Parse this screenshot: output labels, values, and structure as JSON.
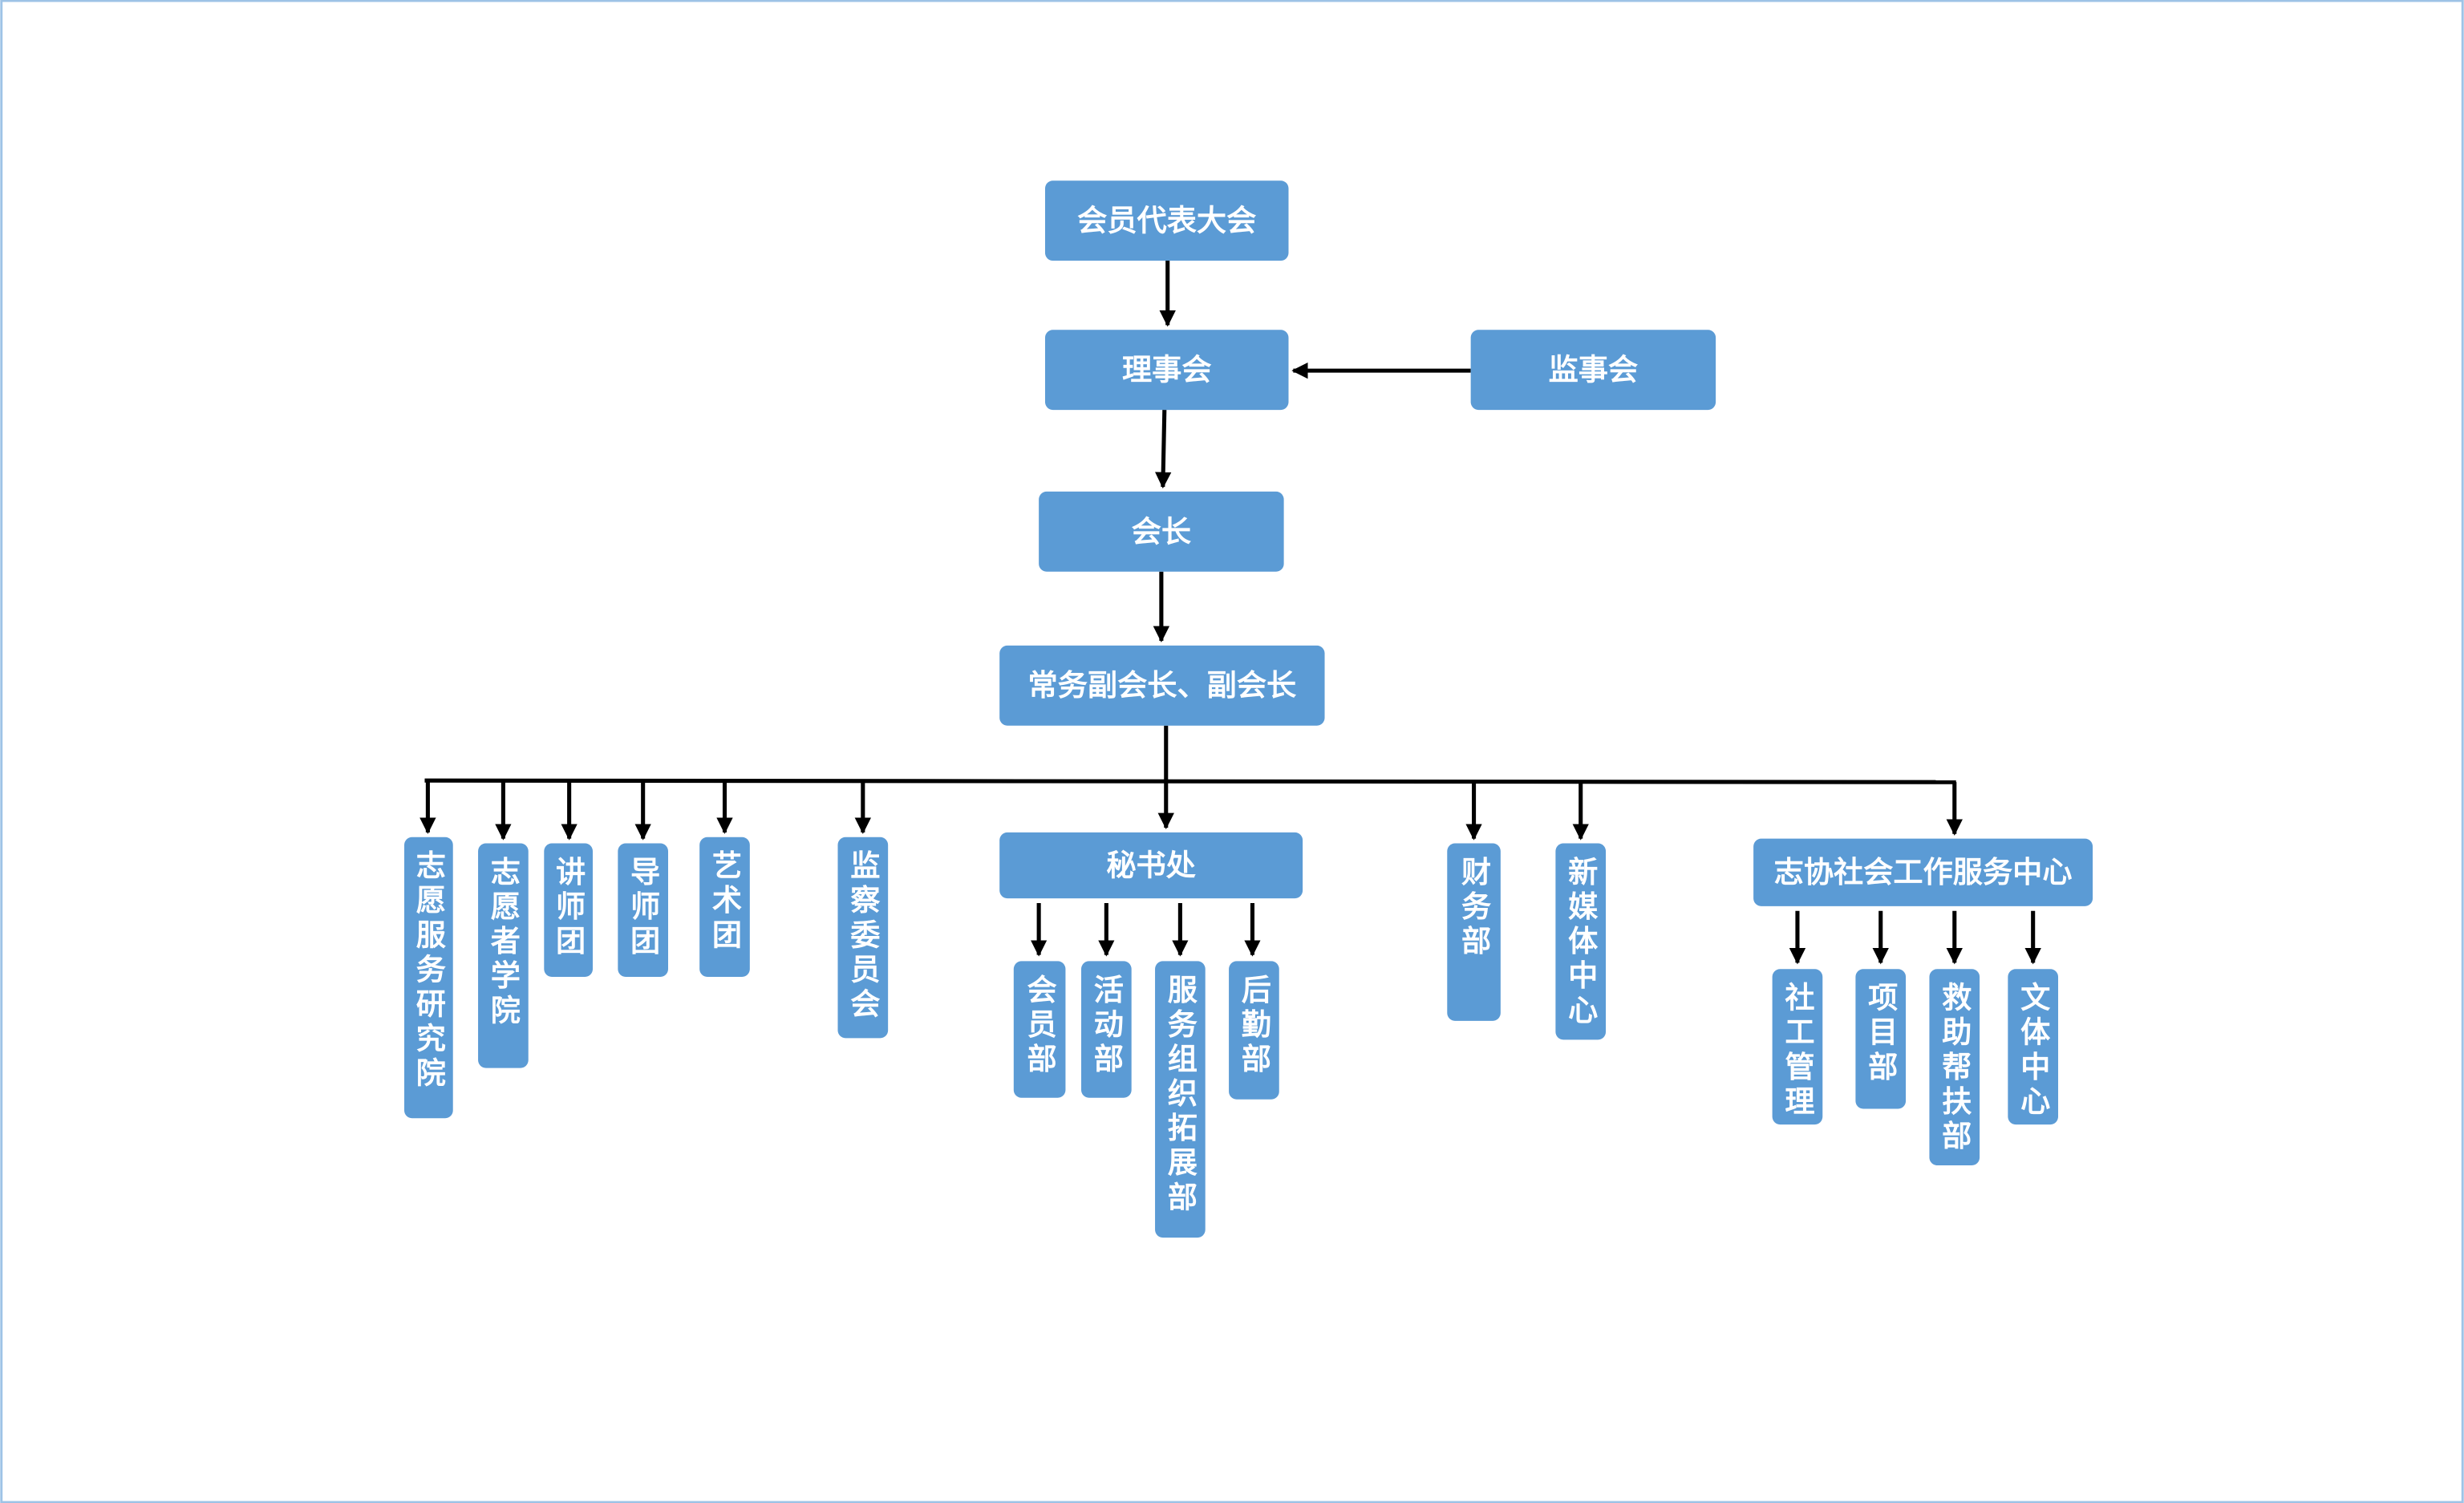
{
  "nodes": [
    {
      "label": "会员代表大会"
    },
    {
      "label": "理事会"
    },
    {
      "label": "监事会"
    },
    {
      "label": "会长"
    },
    {
      "label": "常务副会长、副会长"
    },
    {
      "label": "志愿服务研究院"
    },
    {
      "label": "志愿者学院"
    },
    {
      "label": "讲师团"
    },
    {
      "label": "导师团"
    },
    {
      "label": "艺术团"
    },
    {
      "label": "监察委员会"
    },
    {
      "label": "秘书处"
    },
    {
      "label": "财务部"
    },
    {
      "label": "新媒体中心"
    },
    {
      "label": "志协社会工作服务中心"
    },
    {
      "label": "会员部"
    },
    {
      "label": "活动部"
    },
    {
      "label": "服务组织拓展部"
    },
    {
      "label": "后勤部"
    },
    {
      "label": "社工管理"
    },
    {
      "label": "项目部"
    },
    {
      "label": "救助帮扶部"
    },
    {
      "label": "文体中心"
    }
  ]
}
